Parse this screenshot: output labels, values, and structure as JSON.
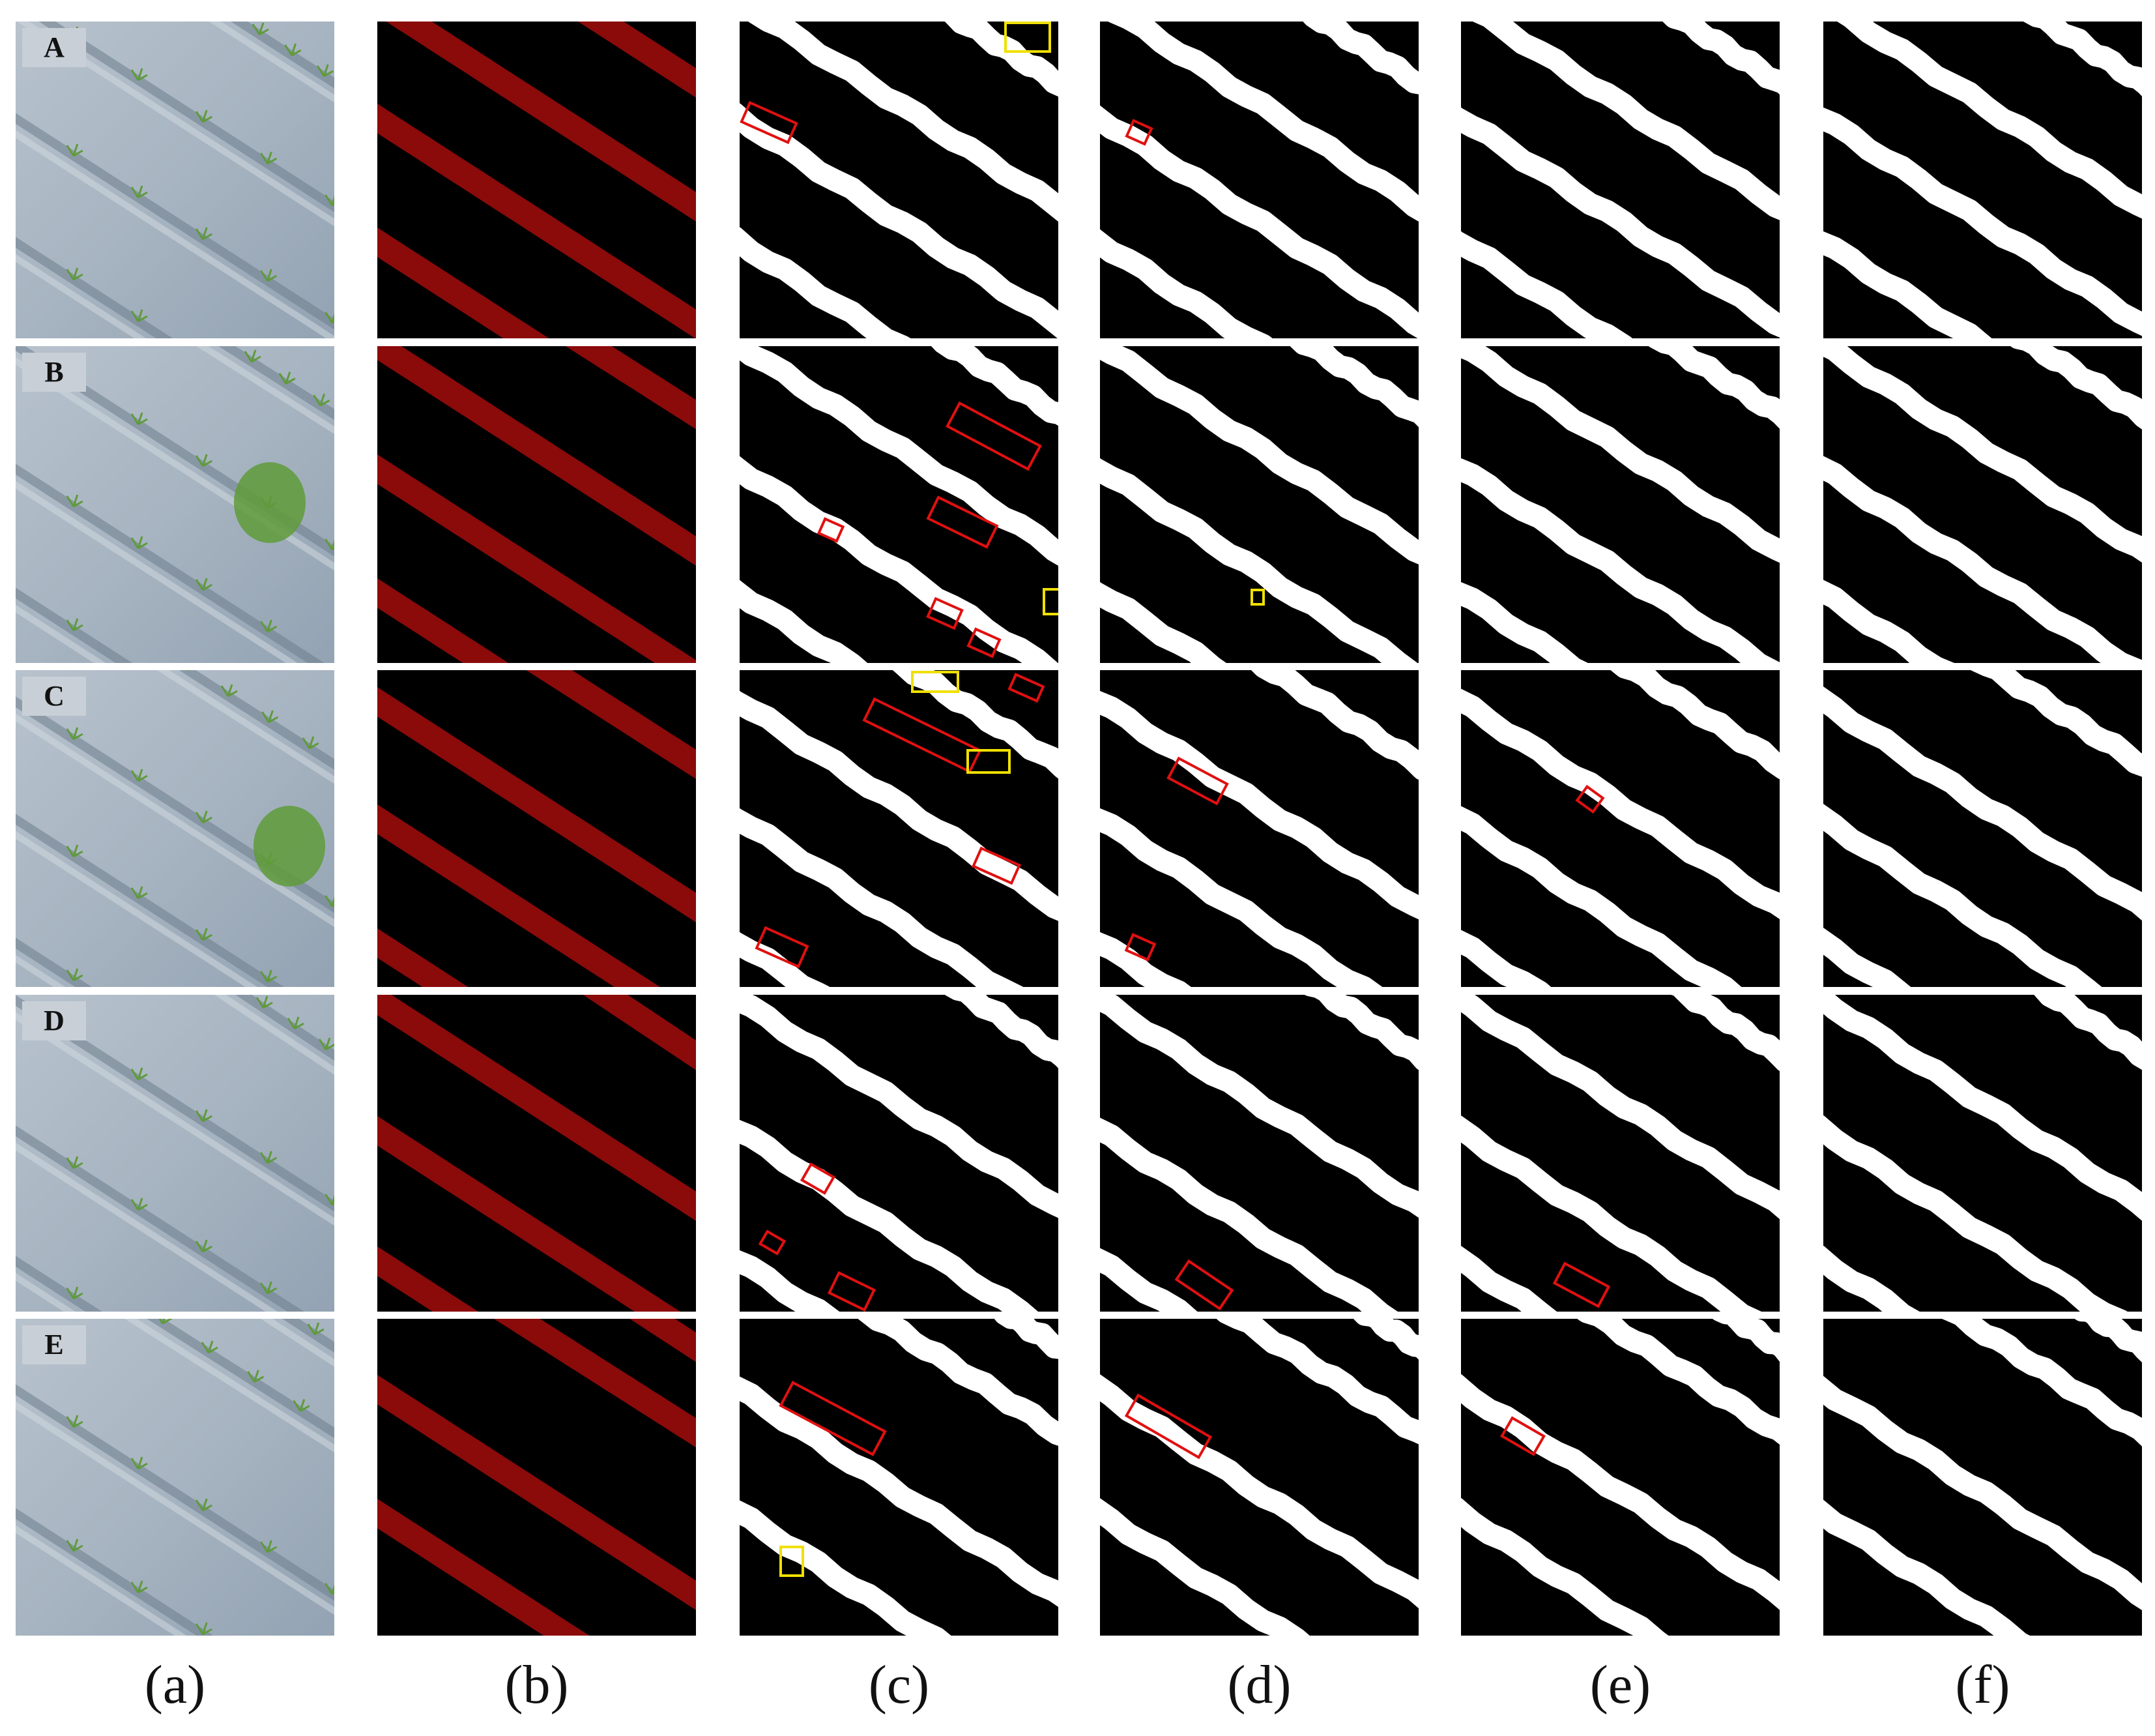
{
  "rows": [
    "A",
    "B",
    "C",
    "D",
    "E"
  ],
  "columns": [
    {
      "label": "(a)",
      "kind": "photo"
    },
    {
      "label": "(b)",
      "kind": "ground-truth"
    },
    {
      "label": "(c)",
      "kind": "prediction"
    },
    {
      "label": "(d)",
      "kind": "prediction"
    },
    {
      "label": "(e)",
      "kind": "prediction"
    },
    {
      "label": "(f)",
      "kind": "prediction"
    }
  ],
  "colors": {
    "photo_soil": "#a7b4c1",
    "photo_soil_dark": "#6e7d8c",
    "photo_seedling": "#5f9b3a",
    "mask_background": "#000000",
    "mask_ground_truth": "#8b0a0a",
    "mask_prediction": "#ffffff",
    "box_error_red": "#e01010",
    "box_error_yellow": "#f0e000"
  },
  "boxes_per_panel": {
    "A": {
      "c": {
        "red": 1,
        "yellow": 1
      },
      "d": {
        "red": 1
      },
      "e": {},
      "f": {}
    },
    "B": {
      "c": {
        "red": 5,
        "yellow": 1
      },
      "d": {
        "yellow": 1
      },
      "e": {},
      "f": {}
    },
    "C": {
      "c": {
        "red": 4,
        "yellow": 2
      },
      "d": {
        "red": 2
      },
      "e": {
        "red": 1
      },
      "f": {}
    },
    "D": {
      "c": {
        "red": 3
      },
      "d": {
        "red": 1
      },
      "e": {
        "red": 1
      },
      "f": {}
    },
    "E": {
      "c": {
        "red": 1,
        "yellow": 1
      },
      "d": {
        "red": 1
      },
      "e": {
        "red": 1
      },
      "f": {}
    }
  }
}
